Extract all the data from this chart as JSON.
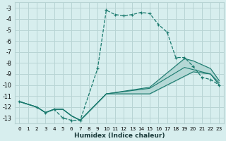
{
  "xlabel": "Humidex (Indice chaleur)",
  "bg_color": "#d7eeee",
  "grid_color": "#b8d4d4",
  "line_color": "#1a7a6e",
  "xlim": [
    -0.5,
    23.5
  ],
  "ylim": [
    -13.5,
    -2.5
  ],
  "xticks": [
    0,
    1,
    2,
    3,
    4,
    5,
    6,
    7,
    8,
    9,
    10,
    11,
    12,
    13,
    14,
    15,
    16,
    17,
    18,
    19,
    20,
    21,
    22,
    23
  ],
  "yticks": [
    -3,
    -4,
    -5,
    -6,
    -7,
    -8,
    -9,
    -10,
    -11,
    -12,
    -13
  ],
  "line1_x": [
    0,
    2,
    3,
    4,
    5,
    6,
    7,
    9,
    10,
    11,
    12,
    13,
    14,
    15,
    16,
    17,
    18,
    19,
    20,
    21,
    22,
    23
  ],
  "line1_y": [
    -11.5,
    -12.0,
    -12.5,
    -12.2,
    -13.0,
    -13.2,
    -13.2,
    -8.5,
    -3.2,
    -3.6,
    -3.7,
    -3.6,
    -3.4,
    -3.5,
    -4.5,
    -5.2,
    -7.5,
    -7.5,
    -8.3,
    -9.3,
    -9.5,
    -10.0
  ],
  "line2_x": [
    0,
    2,
    3,
    4,
    5,
    6,
    7,
    10,
    15,
    19,
    20,
    22,
    23
  ],
  "line2_y": [
    -11.5,
    -12.0,
    -12.5,
    -12.2,
    -12.2,
    -12.8,
    -13.2,
    -10.8,
    -10.8,
    -9.2,
    -8.8,
    -9.0,
    -10.0
  ],
  "line3_x": [
    0,
    2,
    3,
    4,
    5,
    6,
    7,
    10,
    15,
    19,
    20,
    22,
    23
  ],
  "line3_y": [
    -11.5,
    -12.0,
    -12.5,
    -12.2,
    -12.2,
    -12.8,
    -13.2,
    -10.8,
    -10.2,
    -7.6,
    -7.8,
    -8.5,
    -9.6
  ],
  "line4_x": [
    0,
    2,
    3,
    4,
    5,
    6,
    7,
    10,
    15,
    19,
    20,
    22,
    23
  ],
  "line4_y": [
    -11.5,
    -12.0,
    -12.5,
    -12.2,
    -12.2,
    -12.8,
    -13.2,
    -10.8,
    -10.3,
    -8.4,
    -8.6,
    -9.0,
    -9.8
  ]
}
